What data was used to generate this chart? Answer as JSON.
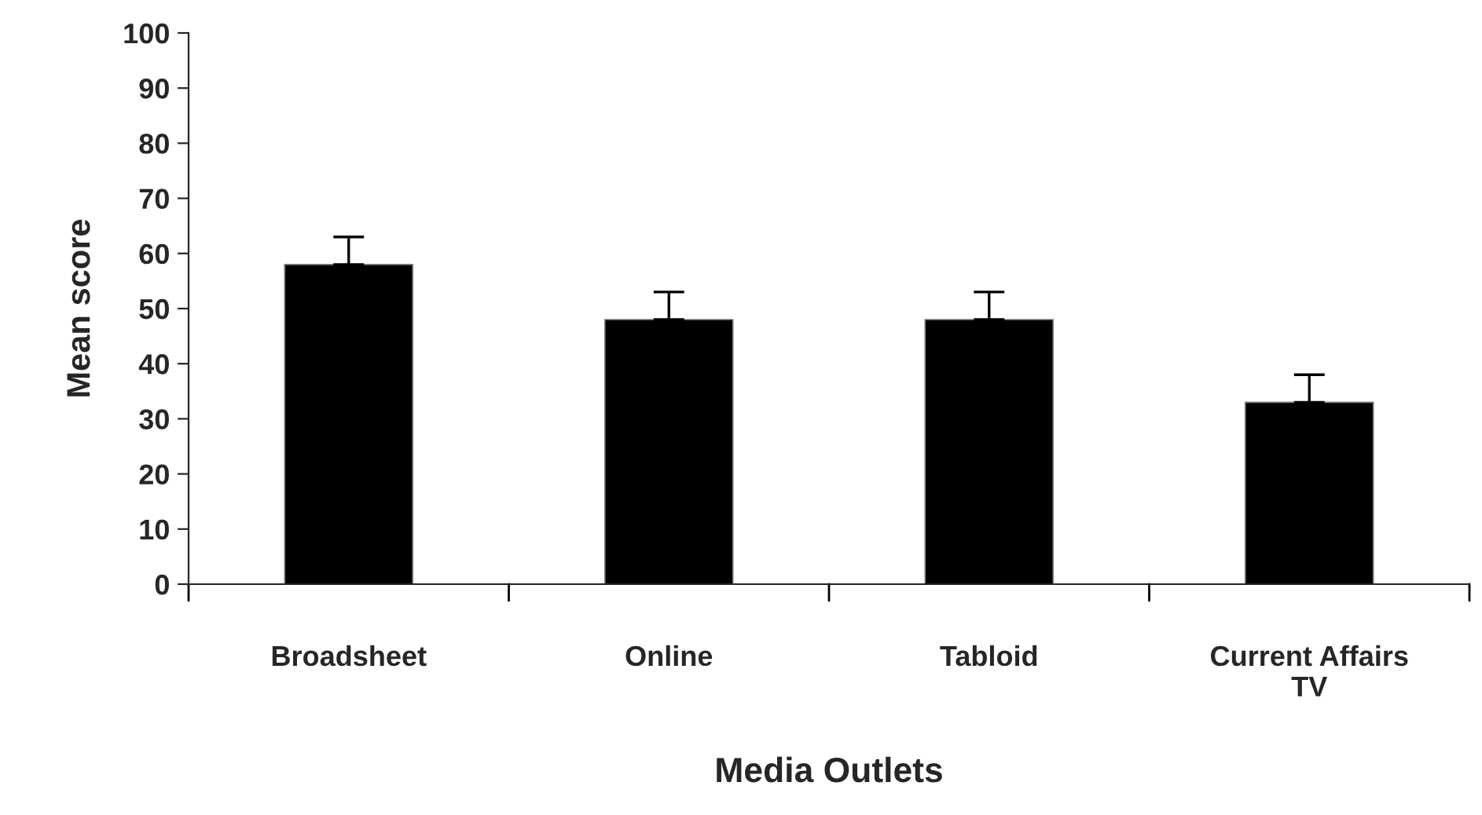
{
  "chart_data": {
    "type": "bar",
    "xlabel": "Media Outlets",
    "ylabel": "Mean score",
    "categories": [
      "Broadsheet",
      "Online",
      "Tabloid",
      "Current Affairs\nTV"
    ],
    "values": [
      58,
      48,
      48,
      33
    ],
    "errors": [
      [
        58,
        63
      ],
      [
        48,
        53
      ],
      [
        48,
        53
      ],
      [
        33,
        38
      ]
    ],
    "color": "#000000",
    "ylim": [
      0,
      100
    ],
    "yticks": [
      0,
      10,
      20,
      30,
      40,
      50,
      60,
      70,
      80,
      90,
      100
    ],
    "grid": false
  }
}
